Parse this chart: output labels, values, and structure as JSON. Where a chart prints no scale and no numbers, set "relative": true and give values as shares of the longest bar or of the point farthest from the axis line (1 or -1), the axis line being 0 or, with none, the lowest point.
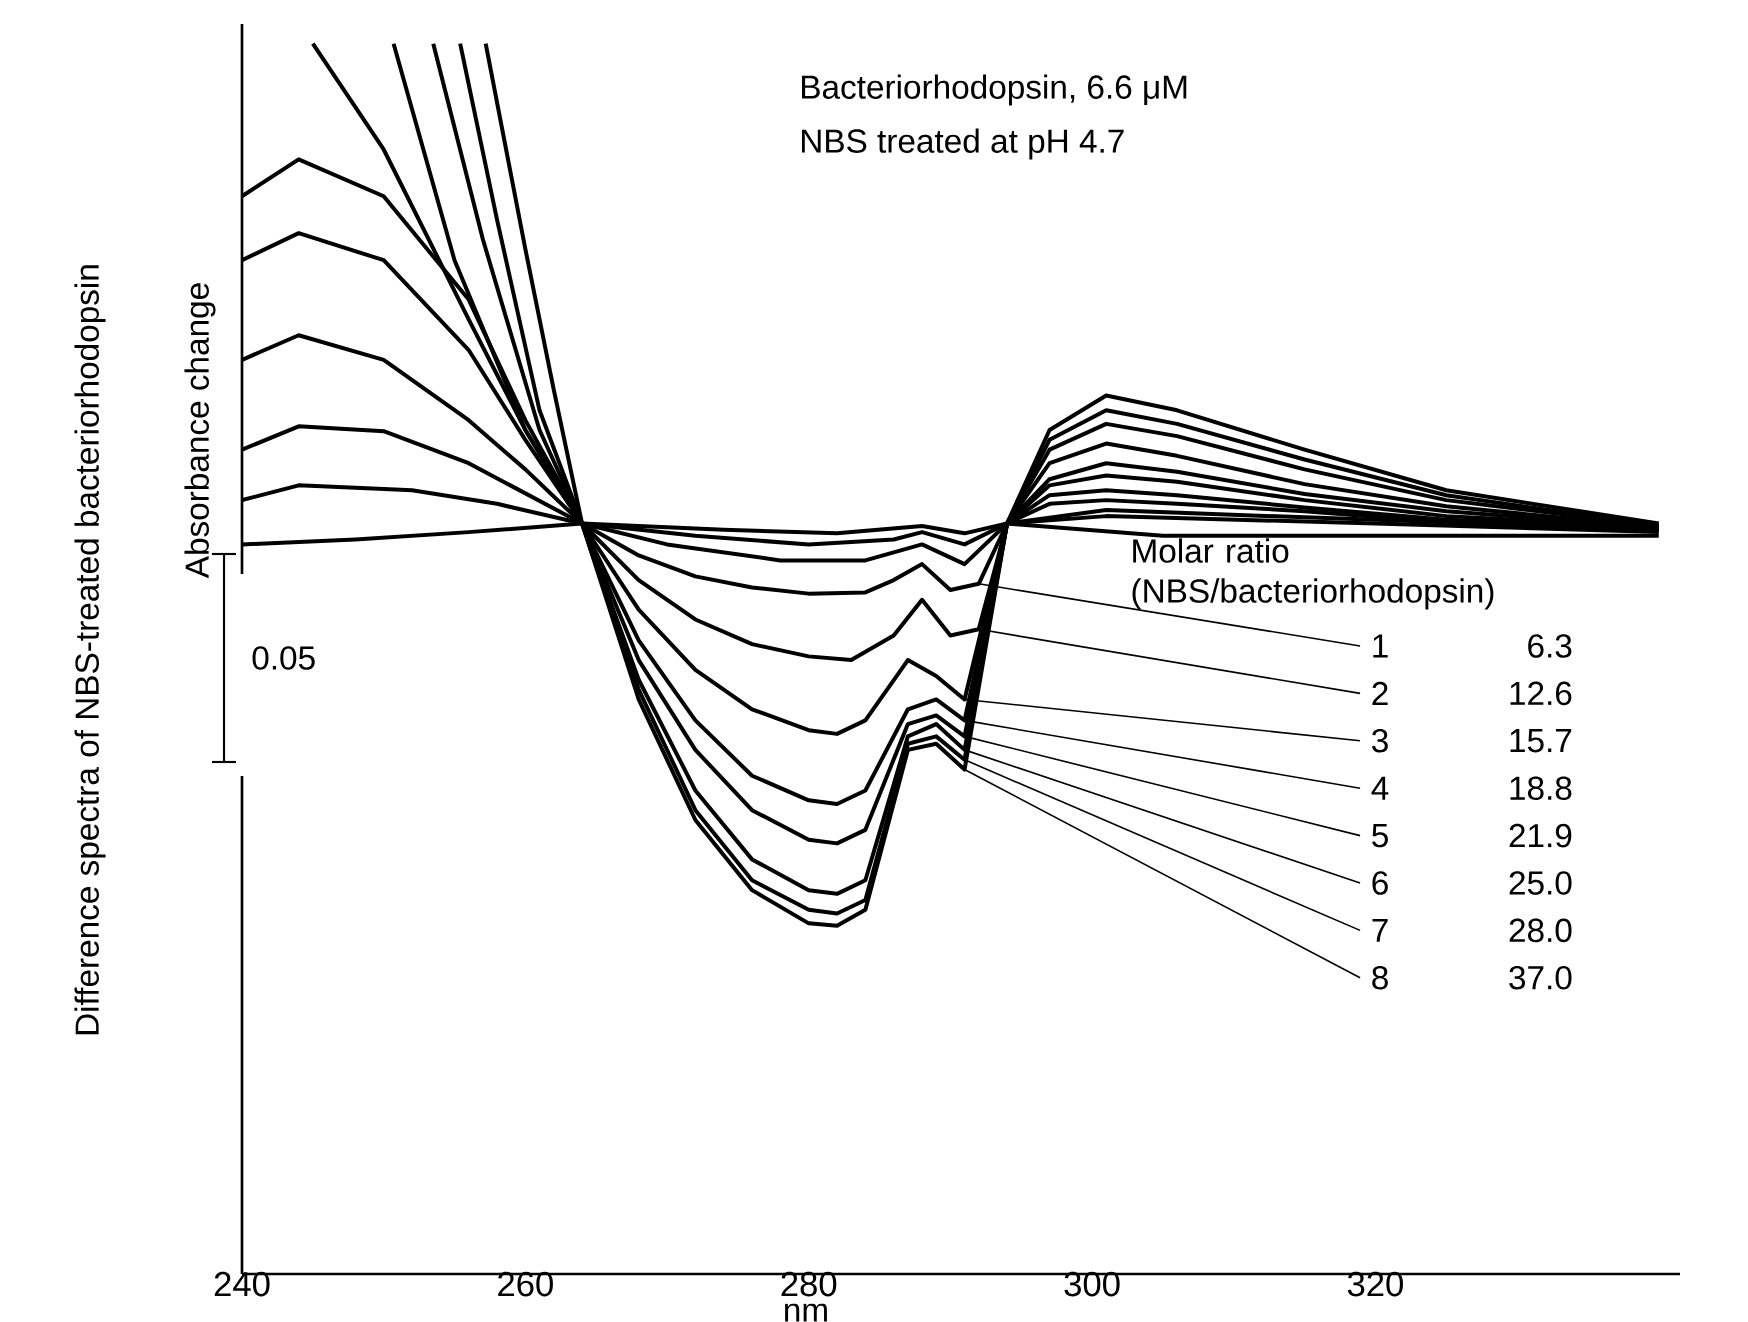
{
  "chart_data": {
    "type": "line",
    "relative": true,
    "title": "Difference spectra of NBS-treated bacteriorhodopsin",
    "ylabel": "Absorbance change",
    "xlabel": "nm",
    "xlim": [
      240,
      341.5
    ],
    "xticks": [
      240,
      260,
      280,
      300,
      320
    ],
    "tick_labels": "x",
    "legend": "right",
    "marker": "none",
    "line_style": "solid",
    "legend_title": "Molar ratio (NBS/bacteriorhodopsin)",
    "annotations": [
      "Bacteriorhodopsin, 6.6 μM",
      "NBS treated at pH 4.7",
      "0.05",
      "6.3",
      "12.6",
      "15.7",
      "18.8",
      "21.9",
      "25.0",
      "28.0",
      "37.0"
    ],
    "series": [
      {
        "name": "1",
        "color": "#000000",
        "x": [
          240,
          244,
          250,
          256,
          260,
          264,
          268,
          272,
          276,
          280,
          284,
          286,
          288,
          290,
          292,
          294,
          297,
          301,
          306,
          315,
          325,
          340
        ],
        "values": [
          0.743,
          0.763,
          0.743,
          0.694,
          0.654,
          0.61,
          0.584,
          0.567,
          0.558,
          0.553,
          0.554,
          0.564,
          0.577,
          0.556,
          0.561,
          0.61,
          0.626,
          0.629,
          0.626,
          0.62,
          0.611,
          0.605
        ]
      },
      {
        "name": "2",
        "color": "#000000",
        "x": [
          240,
          244,
          250,
          256,
          260,
          264,
          268,
          272,
          276,
          280,
          283,
          286,
          288,
          290,
          292,
          294,
          297,
          301,
          306,
          315,
          325,
          340
        ],
        "values": [
          0.824,
          0.846,
          0.824,
          0.751,
          0.678,
          0.61,
          0.564,
          0.532,
          0.512,
          0.502,
          0.499,
          0.519,
          0.548,
          0.519,
          0.524,
          0.61,
          0.633,
          0.637,
          0.633,
          0.623,
          0.613,
          0.607
        ]
      },
      {
        "name": "3",
        "color": "#000000",
        "x": [
          240,
          244,
          250,
          256,
          260,
          264,
          268,
          272,
          276,
          280,
          282,
          284,
          287,
          289,
          291,
          294,
          297,
          301,
          306,
          315,
          325,
          340
        ],
        "values": [
          0.876,
          0.906,
          0.876,
          0.792,
          0.694,
          0.61,
          0.54,
          0.491,
          0.459,
          0.442,
          0.439,
          0.45,
          0.499,
          0.486,
          0.467,
          0.61,
          0.641,
          0.649,
          0.644,
          0.629,
          0.616,
          0.607
        ]
      },
      {
        "name": "4",
        "color": "#000000",
        "x": [
          245,
          250,
          256,
          260,
          264,
          268,
          272,
          276,
          280,
          282,
          284,
          287,
          289,
          291,
          294,
          297,
          301,
          306,
          315,
          325,
          340
        ],
        "values": [
          1.0,
          0.914,
          0.776,
          0.686,
          0.61,
          0.515,
          0.45,
          0.405,
          0.385,
          0.382,
          0.393,
          0.459,
          0.467,
          0.45,
          0.61,
          0.646,
          0.659,
          0.652,
          0.634,
          0.62,
          0.607
        ]
      },
      {
        "name": "5",
        "color": "#000000",
        "x": [
          250.7,
          255,
          260,
          264,
          268,
          272,
          276,
          280,
          282,
          284,
          287,
          289,
          291,
          294,
          297,
          301,
          306,
          315,
          325,
          340
        ],
        "values": [
          1.0,
          0.824,
          0.686,
          0.61,
          0.499,
          0.426,
          0.377,
          0.353,
          0.35,
          0.361,
          0.447,
          0.454,
          0.437,
          0.61,
          0.659,
          0.675,
          0.665,
          0.642,
          0.624,
          0.607
        ]
      },
      {
        "name": "6",
        "color": "#000000",
        "x": [
          253.5,
          257,
          261,
          264,
          268,
          272,
          276,
          280,
          282,
          284,
          287,
          289,
          291,
          294,
          297,
          301,
          306,
          315,
          325,
          340
        ],
        "values": [
          1.0,
          0.841,
          0.686,
          0.61,
          0.483,
          0.393,
          0.337,
          0.312,
          0.309,
          0.32,
          0.437,
          0.447,
          0.426,
          0.61,
          0.67,
          0.691,
          0.681,
          0.654,
          0.629,
          0.608
        ]
      },
      {
        "name": "7",
        "color": "#000000",
        "x": [
          255.4,
          258,
          261,
          264,
          268,
          272,
          276,
          280,
          282,
          284,
          287,
          289,
          291,
          294,
          297,
          301,
          306,
          315,
          325,
          340
        ],
        "values": [
          1.0,
          0.857,
          0.702,
          0.61,
          0.475,
          0.377,
          0.32,
          0.296,
          0.293,
          0.304,
          0.431,
          0.437,
          0.418,
          0.61,
          0.678,
          0.702,
          0.691,
          0.662,
          0.633,
          0.608
        ]
      },
      {
        "name": "8",
        "color": "#000000",
        "x": [
          257.2,
          260,
          262,
          264,
          268,
          272,
          276,
          280,
          282,
          284,
          287,
          289,
          291,
          294,
          297,
          301,
          306,
          315,
          325,
          340
        ],
        "values": [
          1.0,
          0.833,
          0.719,
          0.61,
          0.467,
          0.369,
          0.312,
          0.285,
          0.283,
          0.296,
          0.426,
          0.431,
          0.41,
          0.61,
          0.686,
          0.714,
          0.702,
          0.67,
          0.637,
          0.61
        ]
      },
      {
        "color": "#000000",
        "x": [
          240,
          244,
          250,
          256,
          264,
          270,
          278,
          284,
          288,
          291,
          294,
          301,
          315,
          340
        ],
        "values": [
          0.67,
          0.689,
          0.685,
          0.659,
          0.61,
          0.593,
          0.58,
          0.58,
          0.593,
          0.577,
          0.61,
          0.621,
          0.615,
          0.605
        ]
      },
      {
        "color": "#000000",
        "x": [
          240,
          244,
          252,
          258,
          264,
          272,
          280,
          286,
          288,
          291,
          294,
          301,
          320,
          340
        ],
        "values": [
          0.629,
          0.641,
          0.637,
          0.626,
          0.61,
          0.6,
          0.593,
          0.597,
          0.603,
          0.593,
          0.61,
          0.616,
          0.61,
          0.603
        ]
      },
      {
        "color": "#000000",
        "x": [
          240,
          248,
          256,
          264,
          274,
          282,
          288,
          291,
          294,
          305,
          320,
          340
        ],
        "values": [
          0.593,
          0.597,
          0.603,
          0.61,
          0.605,
          0.602,
          0.608,
          0.602,
          0.61,
          0.6,
          0.6,
          0.6
        ]
      }
    ]
  }
}
